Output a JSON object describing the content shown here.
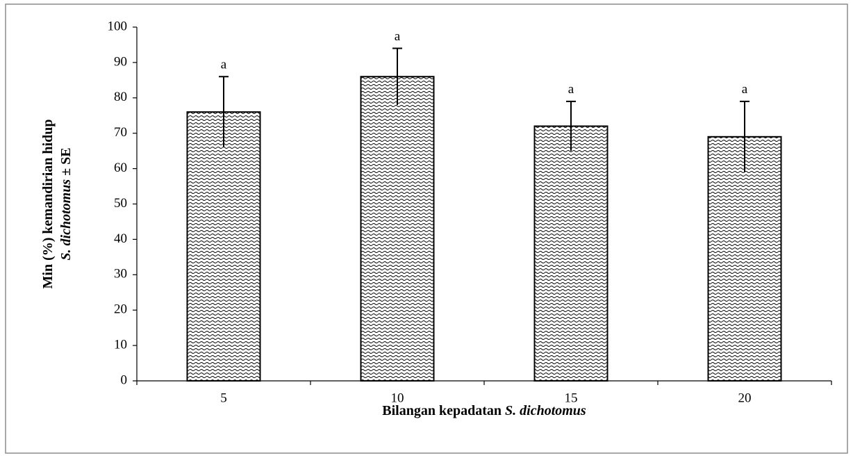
{
  "chart_data": {
    "type": "bar",
    "categories": [
      "5",
      "10",
      "15",
      "20"
    ],
    "values": [
      76,
      86,
      72,
      69
    ],
    "errors": [
      10,
      8,
      7,
      10
    ],
    "annotations": [
      "a",
      "a",
      "a",
      "a"
    ],
    "color": "#000000",
    "xlabel": [
      "Bilangan kepadatan",
      "S. dichotomus"
    ],
    "xlabel_italic": [
      false,
      true
    ],
    "ylabel": [
      "Min (%) kemandirian hidup",
      "S. dichotomus",
      "± SE"
    ],
    "ylabel_italic": [
      false,
      true,
      false
    ],
    "ylim": [
      0,
      100
    ],
    "yticks": [
      0,
      10,
      20,
      30,
      40,
      50,
      60,
      70,
      80,
      90,
      100
    ],
    "grid": false
  }
}
